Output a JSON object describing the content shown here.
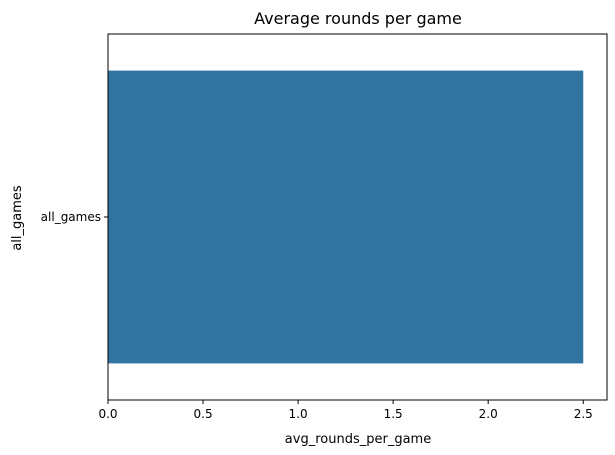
{
  "chart_data": {
    "type": "bar",
    "orientation": "horizontal",
    "title": "Average rounds per game",
    "xlabel": "avg_rounds_per_game",
    "ylabel": "all_games",
    "categories": [
      "all_games"
    ],
    "values": [
      2.5
    ],
    "xlim": [
      0,
      2.625
    ],
    "xticks": [
      "0.0",
      "0.5",
      "1.0",
      "1.5",
      "2.0",
      "2.5"
    ],
    "grid": false,
    "bar_color": "#3274a1"
  }
}
